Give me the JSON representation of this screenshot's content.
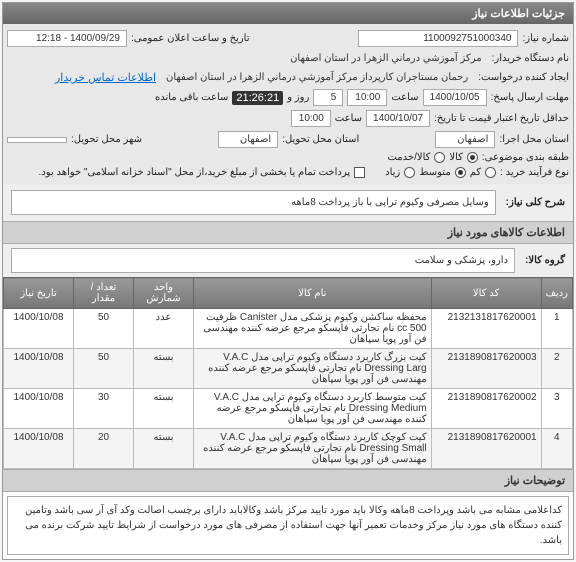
{
  "header": {
    "title": "جزئیات اطلاعات نیاز"
  },
  "form": {
    "need_no_label": "شماره نیاز:",
    "need_no": "1100092751000340",
    "announce_label": "تاریخ و ساعت اعلان عمومی:",
    "announce_val": "1400/09/29 - 12:18",
    "buyer_label": "نام دستگاه خریدار:",
    "buyer_val": "مرکز آموزشي درماني الزهرا در استان اصفهان",
    "creator_label": "ایجاد کننده درخواست:",
    "creator_val": "رحمان مستاجران کارپرداز مرکز آموزشي درماني الزهرا در استان اصفهان",
    "contact_link": "اطلاعات تماس خریدار",
    "deadline_label": "حداقل تاریخ اعتبار قیمت تا تاریخ:",
    "deadline_send_label": "مهلت ارسال پاسخ:",
    "date1": "1400/10/05",
    "time_lbl": "ساعت",
    "time1": "10:00",
    "days": "5",
    "days_lbl": "روز و",
    "timer": "21:26:21",
    "remain_lbl": "ساعت باقی مانده",
    "date2": "1400/10/07",
    "time2": "10:00",
    "prov_exec_label": "استان محل اجرا:",
    "prov_exec": "اصفهان",
    "prov_deliver_label": "استان محل تحویل:",
    "prov_deliver": "اصفهان",
    "city_label": "شهر محل تحویل:",
    "budget_label": "طبقه بندی موضوعی:",
    "opt_goods": "کالا",
    "opt_service": "کالا/خدمت",
    "process_label": "نوع فرآیند خرید :",
    "opt_low": "کم",
    "opt_mid": "متوسط",
    "opt_high": "زیاد",
    "note_checkbox": "پرداخت تمام یا بخشی از مبلغ خرید،از محل \"اسناد خزانه اسلامی\" خواهد بود."
  },
  "summary": {
    "title_label": "شرح کلی نیاز:",
    "title_value": "وسایل مصرفی وکیوم تراپی با باز پرداخت 8ماهه"
  },
  "goods": {
    "section_title": "اطلاعات کالاهای مورد نیاز",
    "group_label": "گروه کالا:",
    "group_value": "دارو، پزشکی و سلامت",
    "columns": {
      "idx": "ردیف",
      "code": "کد کالا",
      "name": "نام کالا",
      "unit": "واحد شمارش",
      "qty": "تعداد / مقدار",
      "date": "تاریخ نیاز"
    },
    "rows": [
      {
        "idx": "1",
        "code": "2132131817620001",
        "name": "محفظه ساکشن وکیوم پزشکی مدل Canister ظرفیت cc 500 نام تجارتی فاپسکو مرجع عرضه کننده مهندسی فن آور پویا سپاهان",
        "unit": "عدد",
        "qty": "50",
        "date": "1400/10/08"
      },
      {
        "idx": "2",
        "code": "2131890817620003",
        "name": "کیت بزرگ کاربرد دستگاه وکیوم تراپی مدل V.A.C Dressing Larg نام تجارتی فاپسکو مرجع عرضه کننده مهندسی فن آور پویا سپاهان",
        "unit": "بسته",
        "qty": "50",
        "date": "1400/10/08"
      },
      {
        "idx": "3",
        "code": "2131890817620002",
        "name": "کیت متوسط کاربرد دستگاه وکیوم تراپی مدل V.A.C Dressing Medium نام تجارتی فاپسکو مرجع عرضه کننده مهندسی فن آور پویا سپاهان",
        "unit": "بسته",
        "qty": "30",
        "date": "1400/10/08"
      },
      {
        "idx": "4",
        "code": "2131890817620001",
        "name": "کیت کوچک کاربرد دستگاه وکیوم تراپی مدل V.A.C Dressing Small نام تجارتی فاپسکو مرجع عرضه کننده مهندسی فن آور پویا سپاهان",
        "unit": "بسته",
        "qty": "20",
        "date": "1400/10/08"
      }
    ]
  },
  "footer": {
    "section_title": "توضیحات نیاز",
    "note": "کداعلامی مشابه می باشد وپرداخت 8ماهه وکالا باید مورد تایید مرکز باشد وکالاباید دارای برچسب اصالت وکد آی آر سی باشد وتامین کننده دستگاه های مورد نیاز مرکز وخدمات تعمیر آنها جهت استفاده از مصرفی های مورد درخواست از شرایط تایید شرکت برنده می باشد."
  }
}
